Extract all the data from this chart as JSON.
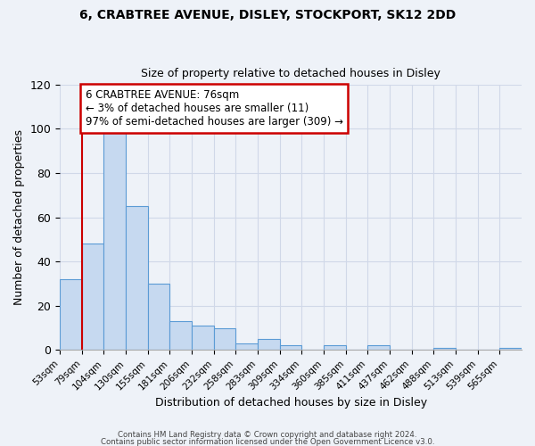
{
  "title_line1": "6, CRABTREE AVENUE, DISLEY, STOCKPORT, SK12 2DD",
  "title_line2": "Size of property relative to detached houses in Disley",
  "xlabel": "Distribution of detached houses by size in Disley",
  "ylabel": "Number of detached properties",
  "bin_labels": [
    "53sqm",
    "79sqm",
    "104sqm",
    "130sqm",
    "155sqm",
    "181sqm",
    "206sqm",
    "232sqm",
    "258sqm",
    "283sqm",
    "309sqm",
    "334sqm",
    "360sqm",
    "385sqm",
    "411sqm",
    "437sqm",
    "462sqm",
    "488sqm",
    "513sqm",
    "539sqm",
    "565sqm"
  ],
  "bar_heights": [
    32,
    48,
    100,
    65,
    30,
    13,
    11,
    10,
    3,
    5,
    2,
    0,
    2,
    0,
    2,
    0,
    0,
    1,
    0,
    0,
    1
  ],
  "bar_color": "#c6d9f0",
  "bar_edgecolor": "#5b9bd5",
  "bar_linewidth": 0.8,
  "annotation_text_line1": "6 CRABTREE AVENUE: 76sqm",
  "annotation_text_line2": "← 3% of detached houses are smaller (11)",
  "annotation_text_line3": "97% of semi-detached houses are larger (309) →",
  "red_line_x": 1.0,
  "ylim": [
    0,
    120
  ],
  "yticks": [
    0,
    20,
    40,
    60,
    80,
    100,
    120
  ],
  "annotation_box_color": "#ffffff",
  "annotation_box_edgecolor": "#cc0000",
  "footer_line1": "Contains HM Land Registry data © Crown copyright and database right 2024.",
  "footer_line2": "Contains public sector information licensed under the Open Government Licence v3.0.",
  "grid_color": "#d0d8e8",
  "background_color": "#eef2f8"
}
